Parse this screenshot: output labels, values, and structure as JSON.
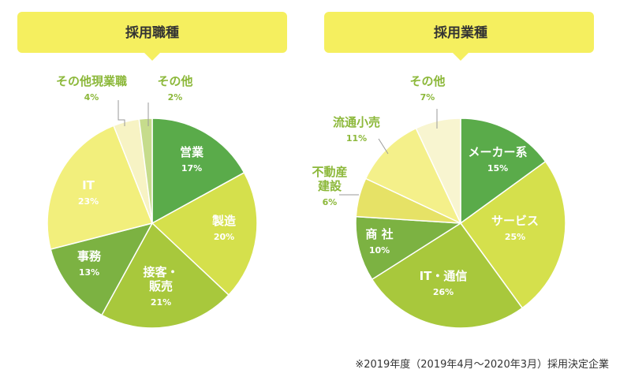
{
  "footnote": "※2019年度（2019年4月～2020年3月）採用決定企業",
  "chart_data": [
    {
      "type": "pie",
      "title": "採用職種",
      "slices": [
        {
          "label": "営業",
          "percent_label": "17%",
          "value": 17,
          "color": "#5aab4a",
          "text_color": "#ffffff"
        },
        {
          "label": "製造",
          "percent_label": "20%",
          "value": 20,
          "color": "#d5e04c",
          "text_color": "#ffffff"
        },
        {
          "label": "接客・販売",
          "label_lines": [
            "接客・",
            "販売"
          ],
          "percent_label": "21%",
          "value": 21,
          "color": "#a8c83c",
          "text_color": "#ffffff"
        },
        {
          "label": "事務",
          "percent_label": "13%",
          "value": 13,
          "color": "#7cb242",
          "text_color": "#ffffff"
        },
        {
          "label": "IT",
          "percent_label": "23%",
          "value": 23,
          "color": "#f2ef7c",
          "text_color": "#d1c24a"
        },
        {
          "label": "その他現業職",
          "percent_label": "4%",
          "value": 4,
          "color": "#f7f3c4",
          "text_color": "#8cb83a"
        },
        {
          "label": "その他",
          "percent_label": "2%",
          "value": 2,
          "color": "#c6dc8c",
          "text_color": "#8cb83a"
        }
      ]
    },
    {
      "type": "pie",
      "title": "採用業種",
      "slices": [
        {
          "label": "メーカー系",
          "percent_label": "15%",
          "value": 15,
          "color": "#5aab4a",
          "text_color": "#ffffff"
        },
        {
          "label": "サービス",
          "percent_label": "25%",
          "value": 25,
          "color": "#d5e04c",
          "text_color": "#ffffff"
        },
        {
          "label": "IT・通信",
          "percent_label": "26%",
          "value": 26,
          "color": "#a8c83c",
          "text_color": "#ffffff"
        },
        {
          "label": "商 社",
          "percent_label": "10%",
          "value": 10,
          "color": "#7cb242",
          "text_color": "#ffffff"
        },
        {
          "label": "不動産建設",
          "label_lines": [
            "不動産",
            "建設"
          ],
          "percent_label": "6%",
          "value": 6,
          "color": "#e6e266",
          "text_color": "#8cb83a"
        },
        {
          "label": "流通小売",
          "percent_label": "11%",
          "value": 11,
          "color": "#f4f08a",
          "text_color": "#8cb83a"
        },
        {
          "label": "その他",
          "percent_label": "7%",
          "value": 7,
          "color": "#f8f5d0",
          "text_color": "#8cb83a"
        }
      ]
    }
  ]
}
